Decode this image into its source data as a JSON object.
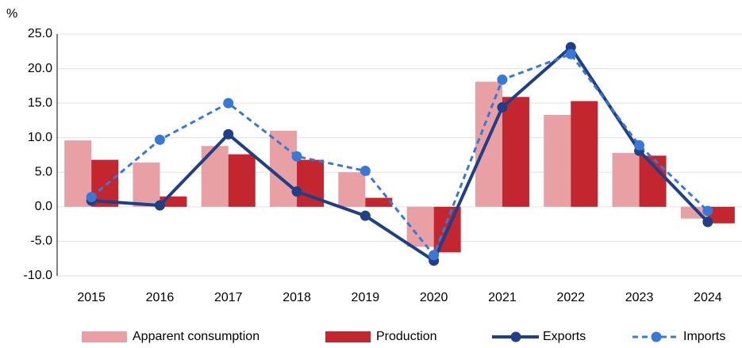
{
  "chart_data": {
    "type": "bar_line",
    "y_unit_label": "%",
    "categories": [
      "2015",
      "2016",
      "2017",
      "2018",
      "2019",
      "2020",
      "2021",
      "2022",
      "2023",
      "2024"
    ],
    "series": [
      {
        "name": "Apparent consumption",
        "kind": "bar",
        "color": "#e8a0a4",
        "values": [
          9.6,
          6.4,
          8.8,
          11.0,
          5.0,
          -5.8,
          18.1,
          13.3,
          7.8,
          -1.7
        ]
      },
      {
        "name": "Production",
        "kind": "bar",
        "color": "#c3262f",
        "values": [
          6.8,
          1.5,
          7.6,
          6.8,
          1.3,
          -6.6,
          15.9,
          15.3,
          7.4,
          -2.4
        ]
      },
      {
        "name": "Exports",
        "kind": "line",
        "color": "#1f3f86",
        "values": [
          0.9,
          0.2,
          10.5,
          2.2,
          -1.3,
          -7.8,
          14.4,
          23.1,
          8.1,
          -2.2
        ]
      },
      {
        "name": "Imports",
        "kind": "dashed-line",
        "color": "#3a78d8",
        "values": [
          1.4,
          9.7,
          15.0,
          7.3,
          5.2,
          -7.0,
          18.4,
          22.1,
          8.9,
          -0.6
        ]
      }
    ],
    "ylim": [
      -10,
      25
    ],
    "yticks": [
      {
        "value": -10,
        "label": "-10.0"
      },
      {
        "value": -5,
        "label": "-5.0"
      },
      {
        "value": 0,
        "label": "0.0"
      },
      {
        "value": 5,
        "label": "5.0"
      },
      {
        "value": 10,
        "label": "10.0"
      },
      {
        "value": 15,
        "label": "15.0"
      },
      {
        "value": 20,
        "label": "20.0"
      },
      {
        "value": 25,
        "label": "25.0"
      }
    ],
    "grid": true,
    "legend": "bottom"
  }
}
